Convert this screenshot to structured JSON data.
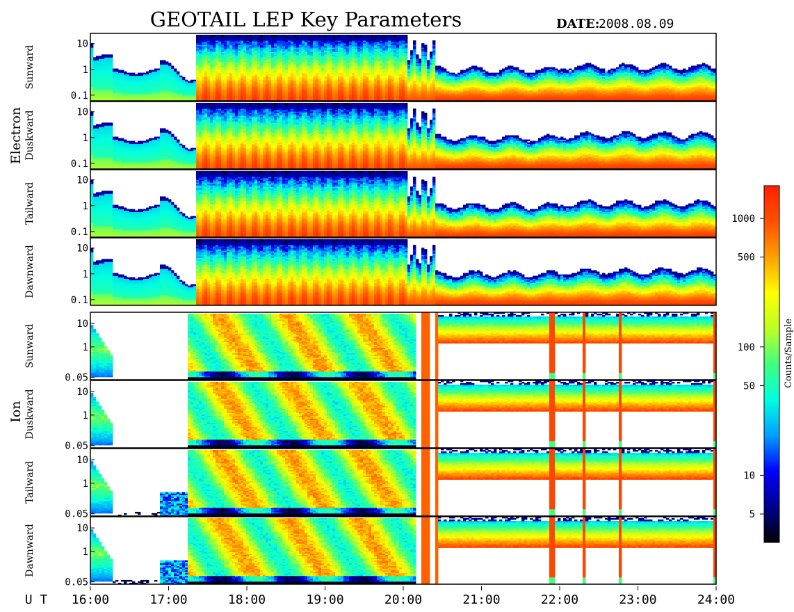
{
  "chart_data": {
    "type": "heatmap",
    "title": "GEOTAIL LEP Key Parameters",
    "date_label": "DATE:",
    "date_value": "2008.08.09",
    "x_axis": {
      "label": "U T",
      "ticks": [
        "16:00",
        "17:00",
        "18:00",
        "19:00",
        "20:00",
        "21:00",
        "22:00",
        "23:00",
        "24:00"
      ],
      "range_hours": [
        16,
        24
      ]
    },
    "colorbar": {
      "label": "Counts/Sample",
      "scale": "log",
      "range": [
        3,
        1800
      ],
      "ticks": [
        "1000",
        "500",
        "100",
        "50",
        "10",
        "5"
      ],
      "tick_values": [
        1000,
        500,
        100,
        50,
        10,
        5
      ],
      "colors": [
        "#000000",
        "#00008f",
        "#0000ff",
        "#00a0ff",
        "#00ffe0",
        "#40ff80",
        "#c0ff20",
        "#ffff00",
        "#ffa000",
        "#ff5000",
        "#ff2000"
      ]
    },
    "groups": [
      {
        "name": "Electron",
        "y_scale": "log",
        "y_ticks": [
          "10",
          "1",
          "0.1"
        ],
        "y_tick_values": [
          10,
          1,
          0.1
        ],
        "y_range": [
          0.06,
          25
        ],
        "panels": [
          "Sunward",
          "Duskward",
          "Tailward",
          "Dawnward"
        ]
      },
      {
        "name": "Ion",
        "y_scale": "log",
        "y_ticks": [
          "10",
          "1",
          "0.05"
        ],
        "y_tick_values": [
          10,
          1,
          0.05
        ],
        "y_range": [
          0.04,
          30
        ],
        "panels": [
          "Sunward",
          "Duskward",
          "Tailward",
          "Dawnward"
        ]
      }
    ]
  }
}
